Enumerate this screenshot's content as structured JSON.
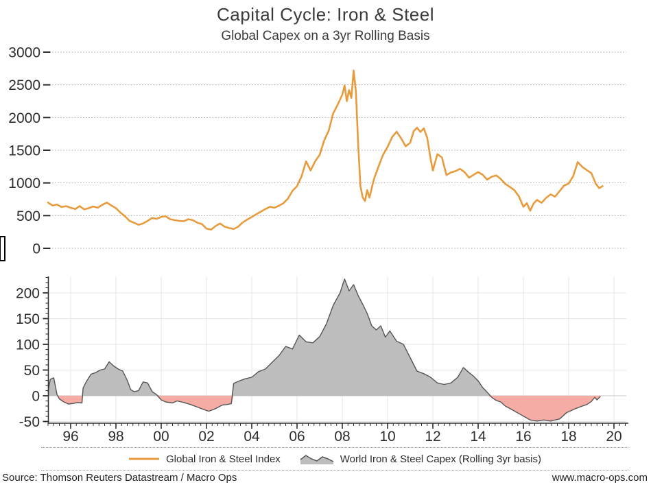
{
  "header": {
    "title": "Capital Cycle: Iron & Steel",
    "subtitle": "Global Capex on a 3yr Rolling Basis"
  },
  "footer": {
    "source": "Source: Thomson Reuters Datastream / Macro Ops",
    "website": "www.macro-ops.com"
  },
  "legend": {
    "items": [
      {
        "id": "index",
        "swatch": "orange-line-swatch",
        "label": "Global Iron & Steel Index"
      },
      {
        "id": "capex",
        "swatch": "gray-area-swatch",
        "label": "World Iron & Steel Capex (Rolling 3yr basis)"
      }
    ]
  },
  "colors": {
    "index_line": "#E89B3C",
    "capex_fill_positive": "#BDBDBD",
    "capex_fill_negative": "#F5ACA5",
    "capex_stroke": "#555555",
    "zero_line": "#c4c4c4",
    "grid_top": "#a6a6a6",
    "grid_bottom": "#e4e4e4",
    "axis": "#2d2d2d",
    "text": "#2d2d2d"
  },
  "x_axis": {
    "xlim": [
      1995,
      2020.6
    ],
    "tick_labels": [
      "96",
      "98",
      "00",
      "02",
      "04",
      "06",
      "08",
      "10",
      "12",
      "14",
      "16",
      "18",
      "20"
    ],
    "tick_years": [
      1996,
      1998,
      2000,
      2002,
      2004,
      2006,
      2008,
      2010,
      2012,
      2014,
      2016,
      2018,
      2020
    ],
    "minor_step_years": 0.25
  },
  "chart_data": [
    {
      "type": "line",
      "name": "Global Iron & Steel Index",
      "panel": "top",
      "ylim": [
        0,
        3000
      ],
      "yticks": [
        0,
        500,
        1000,
        1500,
        2000,
        2500,
        3000
      ],
      "grid": "dotted-horizontal",
      "x": [
        1995.0,
        1995.2,
        1995.4,
        1995.6,
        1995.8,
        1996.0,
        1996.2,
        1996.4,
        1996.6,
        1996.8,
        1997.0,
        1997.2,
        1997.4,
        1997.6,
        1997.8,
        1998.0,
        1998.2,
        1998.4,
        1998.6,
        1998.8,
        1999.0,
        1999.2,
        1999.4,
        1999.6,
        1999.8,
        2000.0,
        2000.2,
        2000.4,
        2000.6,
        2000.8,
        2001.0,
        2001.2,
        2001.4,
        2001.6,
        2001.8,
        2002.0,
        2002.2,
        2002.4,
        2002.6,
        2002.8,
        2003.0,
        2003.2,
        2003.4,
        2003.6,
        2003.8,
        2004.0,
        2004.2,
        2004.4,
        2004.6,
        2004.8,
        2005.0,
        2005.2,
        2005.4,
        2005.6,
        2005.8,
        2006.0,
        2006.2,
        2006.4,
        2006.6,
        2006.8,
        2007.0,
        2007.2,
        2007.4,
        2007.6,
        2007.8,
        2008.0,
        2008.1,
        2008.2,
        2008.3,
        2008.4,
        2008.5,
        2008.6,
        2008.7,
        2008.8,
        2008.9,
        2009.0,
        2009.1,
        2009.2,
        2009.4,
        2009.6,
        2009.8,
        2010.0,
        2010.2,
        2010.4,
        2010.6,
        2010.8,
        2011.0,
        2011.15,
        2011.3,
        2011.45,
        2011.6,
        2011.75,
        2011.9,
        2012.0,
        2012.2,
        2012.4,
        2012.6,
        2012.8,
        2013.0,
        2013.2,
        2013.4,
        2013.6,
        2013.8,
        2014.0,
        2014.2,
        2014.4,
        2014.6,
        2014.8,
        2015.0,
        2015.2,
        2015.4,
        2015.6,
        2015.8,
        2016.0,
        2016.15,
        2016.3,
        2016.45,
        2016.6,
        2016.8,
        2017.0,
        2017.2,
        2017.4,
        2017.6,
        2017.8,
        2018.0,
        2018.2,
        2018.4,
        2018.6,
        2018.8,
        2019.0,
        2019.2,
        2019.35,
        2019.5
      ],
      "y": [
        700,
        655,
        670,
        630,
        645,
        620,
        600,
        645,
        595,
        615,
        640,
        620,
        665,
        700,
        655,
        615,
        545,
        490,
        420,
        390,
        360,
        380,
        420,
        465,
        450,
        480,
        490,
        445,
        430,
        420,
        415,
        445,
        430,
        390,
        370,
        300,
        285,
        340,
        380,
        330,
        310,
        295,
        330,
        395,
        440,
        480,
        520,
        560,
        600,
        635,
        620,
        650,
        690,
        760,
        880,
        950,
        1100,
        1330,
        1190,
        1330,
        1430,
        1650,
        1800,
        2065,
        2200,
        2350,
        2490,
        2250,
        2420,
        2300,
        2720,
        2400,
        1600,
        950,
        780,
        724,
        890,
        776,
        1060,
        1250,
        1430,
        1550,
        1700,
        1783,
        1680,
        1560,
        1615,
        1790,
        1845,
        1780,
        1835,
        1690,
        1370,
        1190,
        1440,
        1390,
        1120,
        1160,
        1180,
        1215,
        1165,
        1080,
        1125,
        1165,
        1125,
        1050,
        1095,
        1115,
        1060,
        985,
        940,
        890,
        795,
        635,
        690,
        575,
        685,
        740,
        695,
        770,
        825,
        790,
        875,
        960,
        990,
        1105,
        1320,
        1245,
        1195,
        1150,
        985,
        920,
        950
      ]
    },
    {
      "type": "area",
      "name": "World Iron & Steel Capex (Rolling 3yr basis)",
      "panel": "bottom",
      "ylim": [
        -53,
        232
      ],
      "yticks": [
        -50,
        0,
        50,
        100,
        150,
        200
      ],
      "y_minor_step": 10,
      "negative_highlighted": true,
      "x": [
        1995.0,
        1995.1,
        1995.25,
        1995.4,
        1995.5,
        1995.7,
        1995.9,
        1996.1,
        1996.3,
        1996.5,
        1996.55,
        1996.7,
        1996.9,
        1997.1,
        1997.3,
        1997.5,
        1997.7,
        1997.9,
        1998.1,
        1998.3,
        1998.5,
        1998.65,
        1998.8,
        1999.0,
        1999.2,
        1999.4,
        1999.6,
        1999.8,
        2000.0,
        2000.2,
        2000.5,
        2000.7,
        2001.0,
        2001.3,
        2001.6,
        2001.9,
        2002.1,
        2002.4,
        2002.7,
        2002.9,
        2003.1,
        2003.2,
        2003.4,
        2003.7,
        2004.0,
        2004.3,
        2004.6,
        2004.9,
        2005.2,
        2005.5,
        2005.8,
        2006.1,
        2006.4,
        2006.7,
        2007.0,
        2007.3,
        2007.6,
        2007.9,
        2008.1,
        2008.3,
        2008.5,
        2008.7,
        2008.9,
        2009.1,
        2009.3,
        2009.5,
        2009.7,
        2009.9,
        2010.1,
        2010.4,
        2010.7,
        2011.0,
        2011.3,
        2011.6,
        2011.9,
        2012.2,
        2012.5,
        2012.8,
        2013.1,
        2013.35,
        2013.6,
        2013.8,
        2014.0,
        2014.2,
        2014.4,
        2014.6,
        2014.8,
        2015.0,
        2015.2,
        2015.45,
        2015.7,
        2015.9,
        2016.1,
        2016.3,
        2016.6,
        2016.9,
        2017.2,
        2017.4,
        2017.6,
        2017.9,
        2018.1,
        2018.3,
        2018.6,
        2018.8,
        2019.0,
        2019.15,
        2019.25,
        2019.4
      ],
      "y": [
        8,
        32,
        35,
        2,
        -6,
        -12,
        -16,
        -15,
        -13,
        -14,
        15,
        28,
        42,
        45,
        50,
        52,
        66,
        58,
        52,
        48,
        30,
        12,
        8,
        10,
        27,
        25,
        8,
        2,
        -8,
        -12,
        -14,
        -10,
        -13,
        -17,
        -22,
        -27,
        -30,
        -25,
        -18,
        -17,
        -15,
        24,
        28,
        33,
        36,
        47,
        52,
        65,
        78,
        96,
        91,
        118,
        105,
        103,
        115,
        140,
        176,
        200,
        227,
        204,
        216,
        195,
        178,
        160,
        136,
        128,
        136,
        114,
        126,
        106,
        100,
        74,
        48,
        43,
        36,
        25,
        22,
        25,
        36,
        55,
        45,
        38,
        29,
        16,
        7,
        -3,
        -9,
        -12,
        -20,
        -26,
        -32,
        -37,
        -42,
        -47,
        -49,
        -47,
        -49,
        -47,
        -45,
        -33,
        -29,
        -25,
        -20,
        -17,
        -11,
        -3,
        -8,
        -1
      ]
    }
  ]
}
